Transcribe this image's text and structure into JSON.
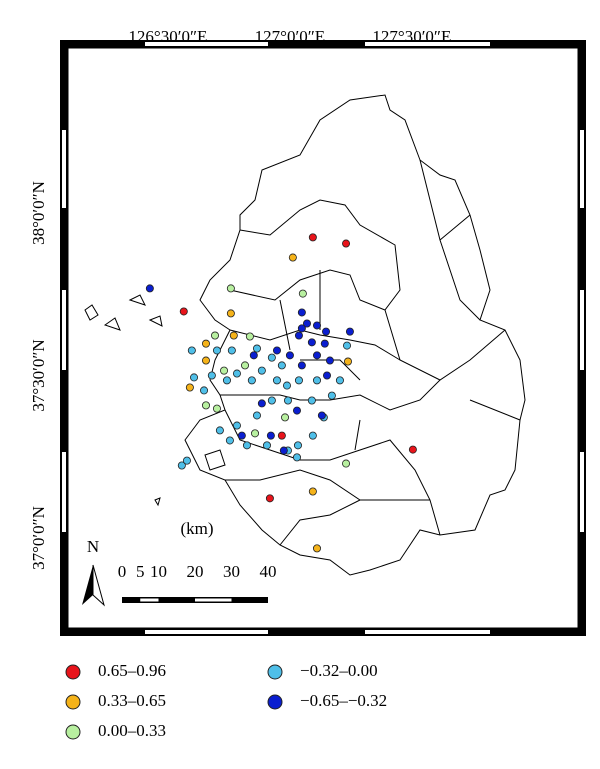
{
  "chart_data": {
    "type": "point-map",
    "xlim": [
      126.0905,
      128.1807
    ],
    "ylim": [
      36.723,
      38.5077
    ],
    "xticks": [
      {
        "value": 126.5,
        "label": "126°30′0″E"
      },
      {
        "value": 127.0,
        "label": "127°0′0″E"
      },
      {
        "value": 127.5,
        "label": "127°30′0″E"
      }
    ],
    "yticks": [
      {
        "value": 38.0,
        "label": "38°0′0″N"
      },
      {
        "value": 37.5,
        "label": "37°30′0″N"
      },
      {
        "value": 37.0,
        "label": "37°0′0″N"
      }
    ],
    "north": "N",
    "scale_bar": {
      "unit": "(km)",
      "ticks": [
        0,
        5,
        10,
        20,
        30,
        40
      ]
    },
    "legend": [
      {
        "label": "0.65–0.96",
        "color": "#e8141b"
      },
      {
        "label": "0.33–0.65",
        "color": "#f5b31a"
      },
      {
        "label": "0.00–0.33",
        "color": "#b8f0a0"
      },
      {
        "label": "−0.32–0.00",
        "color": "#4fbfe8"
      },
      {
        "label": "−0.65–−0.32",
        "color": "#0a1ed0"
      }
    ],
    "points": {
      "lon": [
        127.094,
        127.23,
        126.565,
        127.504,
        126.918,
        126.967,
        127.012,
        126.758,
        126.656,
        127.238,
        127.094,
        127.111,
        126.656,
        126.59,
        126.77,
        126.758,
        127.053,
        126.693,
        126.836,
        126.816,
        126.73,
        126.656,
        126.701,
        127.23,
        126.98,
        126.857,
        126.598,
        126.607,
        126.68,
        126.742,
        126.783,
        126.844,
        126.885,
        126.947,
        126.988,
        127.037,
        126.992,
        126.926,
        126.865,
        126.783,
        126.713,
        126.754,
        126.824,
        126.906,
        126.992,
        127.033,
        127.094,
        127.029,
        127.139,
        127.172,
        127.205,
        127.111,
        126.926,
        126.865,
        126.701,
        126.648,
        126.557,
        126.578,
        127.09,
        126.967,
        127.234,
        126.762,
        126.426,
        127.246,
        127.049,
        127.07,
        127.111,
        127.037,
        127.09,
        127.143,
        126.947,
        127.0,
        127.111,
        127.164,
        127.049,
        126.852,
        127.029,
        126.922,
        126.975,
        126.803,
        126.885,
        127.131,
        127.152,
        127.049,
        127.148
      ],
      "lat": [
        37.925,
        37.906,
        37.697,
        37.272,
        37.122,
        37.315,
        37.863,
        37.691,
        37.598,
        37.543,
        37.143,
        36.968,
        37.546,
        37.463,
        37.623,
        37.768,
        37.752,
        37.623,
        37.62,
        37.531,
        37.515,
        37.408,
        37.398,
        37.229,
        37.371,
        37.322,
        37.577,
        37.494,
        37.5,
        37.485,
        37.506,
        37.485,
        37.515,
        37.485,
        37.469,
        37.485,
        37.423,
        37.423,
        37.377,
        37.346,
        37.331,
        37.3,
        37.285,
        37.285,
        37.269,
        37.285,
        37.315,
        37.248,
        37.371,
        37.438,
        37.485,
        37.485,
        37.555,
        37.583,
        37.577,
        37.454,
        37.223,
        37.238,
        37.423,
        37.531,
        37.592,
        37.577,
        37.768,
        37.635,
        37.694,
        37.66,
        37.654,
        37.623,
        37.602,
        37.598,
        37.577,
        37.562,
        37.562,
        37.546,
        37.531,
        37.562,
        37.392,
        37.315,
        37.269,
        37.315,
        37.414,
        37.377,
        37.5,
        37.645,
        37.635
      ],
      "class": [
        0,
        0,
        0,
        0,
        0,
        0,
        1,
        1,
        1,
        1,
        1,
        1,
        1,
        1,
        1,
        2,
        2,
        2,
        2,
        2,
        2,
        2,
        2,
        2,
        2,
        2,
        3,
        3,
        3,
        3,
        3,
        3,
        3,
        3,
        3,
        3,
        3,
        3,
        3,
        3,
        3,
        3,
        3,
        3,
        3,
        3,
        3,
        3,
        3,
        3,
        3,
        3,
        3,
        3,
        3,
        3,
        3,
        3,
        3,
        3,
        3,
        3,
        4,
        4,
        4,
        4,
        4,
        4,
        4,
        4,
        4,
        4,
        4,
        4,
        4,
        4,
        4,
        4,
        4,
        4,
        4,
        4,
        4,
        4,
        4
      ]
    }
  }
}
